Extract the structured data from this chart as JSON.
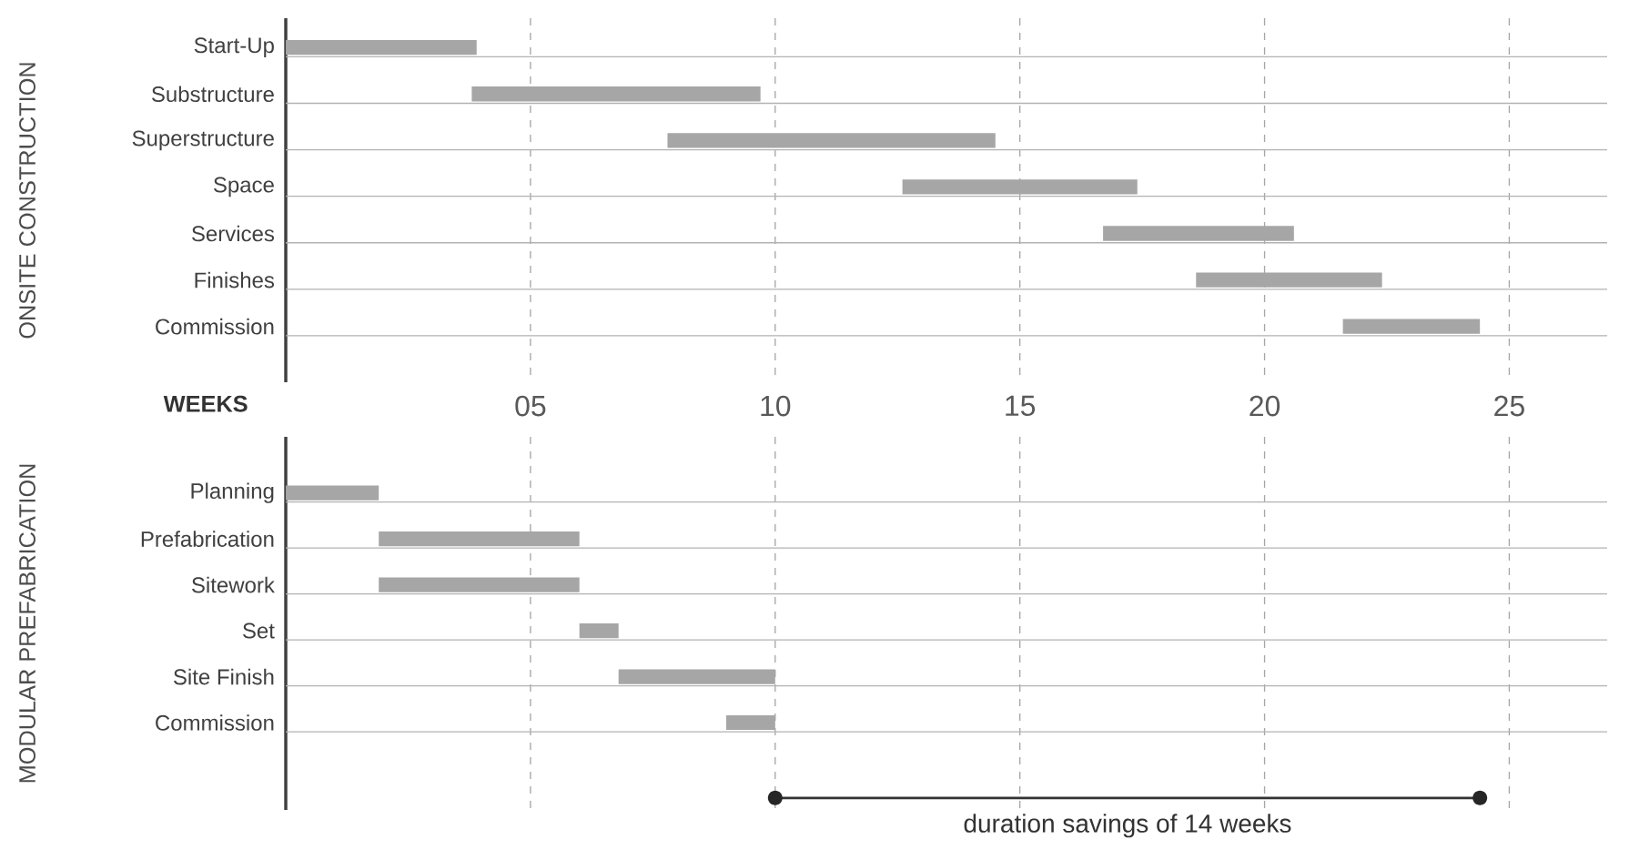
{
  "chart_data": [
    {
      "type": "bar",
      "orientation": "horizontal",
      "ylabel": "ONSITE CONSTRUCTION",
      "xlabel": "WEEKS",
      "categories": [
        "Start-Up",
        "Substructure",
        "Superstructure",
        "Space",
        "Services",
        "Finishes",
        "Commission"
      ],
      "base": [
        0,
        3.8,
        7.8,
        12.6,
        16.7,
        18.6,
        21.6
      ],
      "values": [
        3.9,
        5.9,
        6.7,
        4.8,
        3.9,
        3.8,
        2.8
      ],
      "color": "#a6a6a6",
      "xlim": [
        0,
        27
      ],
      "xticks": [
        {
          "value": 5,
          "label": "05"
        },
        10,
        15,
        20,
        25
      ],
      "grid": true
    },
    {
      "type": "bar",
      "orientation": "horizontal",
      "ylabel": "MODULAR PREFABRICATION",
      "categories": [
        "Planning",
        "Prefabrication",
        "Sitework",
        "Set",
        "Site Finish",
        "Commission"
      ],
      "base": [
        0,
        1.9,
        1.9,
        6.0,
        6.8,
        9.0
      ],
      "values": [
        1.9,
        4.1,
        4.1,
        0.8,
        3.2,
        1.0
      ],
      "color": "#a6a6a6",
      "xlim": [
        0,
        27
      ],
      "xticks": [
        5,
        10,
        15,
        20,
        25
      ],
      "grid": true,
      "tick_labels": "y",
      "annotations": [
        "duration savings of 14 weeks"
      ]
    }
  ]
}
